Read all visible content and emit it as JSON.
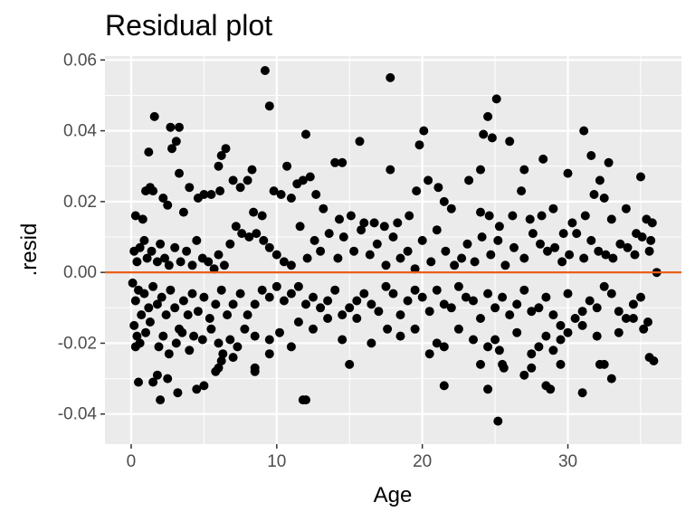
{
  "chart_data": {
    "type": "scatter",
    "title": "Residual plot",
    "xlabel": "Age",
    "ylabel": ".resid",
    "xlim": [
      -1.8,
      37.8
    ],
    "ylim": [
      -0.0485,
      0.0611
    ],
    "x_ticks": [
      0,
      10,
      20,
      30
    ],
    "x_tick_labels": [
      "0",
      "10",
      "20",
      "30"
    ],
    "y_ticks": [
      -0.04,
      -0.02,
      0.0,
      0.02,
      0.04,
      0.06
    ],
    "y_tick_labels": [
      "-0.04",
      "-0.02",
      "0.00",
      "0.02",
      "0.04",
      "0.06"
    ],
    "grid": true,
    "reference_line": {
      "y": 0,
      "color": "#e8601c"
    },
    "colors": {
      "panel": "#ebebeb",
      "grid": "#ffffff",
      "points": "#000000",
      "ref_line": "#e8601c"
    },
    "points": [
      [
        9.2,
        0.057
      ],
      [
        17.8,
        0.055
      ],
      [
        25.1,
        0.049
      ],
      [
        9.5,
        0.047
      ],
      [
        2.7,
        0.041
      ],
      [
        1.6,
        0.044
      ],
      [
        3.3,
        0.041
      ],
      [
        20.1,
        0.04
      ],
      [
        31.1,
        0.04
      ],
      [
        24.5,
        0.044
      ],
      [
        24.2,
        0.039
      ],
      [
        24.8,
        0.038
      ],
      [
        12.0,
        0.039
      ],
      [
        19.8,
        0.036
      ],
      [
        15.7,
        0.037
      ],
      [
        26.0,
        0.037
      ],
      [
        3.1,
        0.037
      ],
      [
        2.8,
        0.035
      ],
      [
        6.5,
        0.035
      ],
      [
        1.2,
        0.034
      ],
      [
        31.6,
        0.033
      ],
      [
        6.2,
        0.033
      ],
      [
        32.8,
        0.031
      ],
      [
        14.0,
        0.031
      ],
      [
        14.5,
        0.031
      ],
      [
        28.3,
        0.032
      ],
      [
        17.8,
        0.029
      ],
      [
        24.0,
        0.029
      ],
      [
        27.0,
        0.029
      ],
      [
        30.0,
        0.028
      ],
      [
        32.2,
        0.026
      ],
      [
        35.0,
        0.027
      ],
      [
        6.0,
        0.03
      ],
      [
        8.3,
        0.029
      ],
      [
        10.7,
        0.03
      ],
      [
        11.8,
        0.026
      ],
      [
        12.3,
        0.027
      ],
      [
        3.3,
        0.028
      ],
      [
        0.3,
        0.016
      ],
      [
        0.8,
        0.015
      ],
      [
        1.0,
        0.023
      ],
      [
        1.3,
        0.024
      ],
      [
        1.5,
        0.023
      ],
      [
        2.2,
        0.021
      ],
      [
        2.5,
        0.019
      ],
      [
        3.6,
        0.017
      ],
      [
        4.0,
        0.024
      ],
      [
        4.6,
        0.021
      ],
      [
        5.0,
        0.022
      ],
      [
        5.5,
        0.022
      ],
      [
        6.1,
        0.023
      ],
      [
        7.0,
        0.026
      ],
      [
        7.5,
        0.024
      ],
      [
        8.0,
        0.026
      ],
      [
        8.4,
        0.017
      ],
      [
        9.0,
        0.016
      ],
      [
        9.8,
        0.023
      ],
      [
        10.3,
        0.022
      ],
      [
        11.0,
        0.021
      ],
      [
        11.4,
        0.025
      ],
      [
        12.7,
        0.022
      ],
      [
        13.2,
        0.018
      ],
      [
        14.3,
        0.015
      ],
      [
        15.1,
        0.016
      ],
      [
        16.0,
        0.014
      ],
      [
        16.7,
        0.014
      ],
      [
        17.4,
        0.013
      ],
      [
        18.3,
        0.014
      ],
      [
        19.1,
        0.016
      ],
      [
        19.6,
        0.023
      ],
      [
        20.4,
        0.026
      ],
      [
        21.1,
        0.024
      ],
      [
        21.5,
        0.02
      ],
      [
        22.0,
        0.018
      ],
      [
        23.2,
        0.026
      ],
      [
        24.0,
        0.017
      ],
      [
        24.6,
        0.016
      ],
      [
        25.3,
        0.013
      ],
      [
        26.2,
        0.016
      ],
      [
        26.8,
        0.023
      ],
      [
        27.4,
        0.015
      ],
      [
        28.2,
        0.016
      ],
      [
        29.0,
        0.018
      ],
      [
        29.7,
        0.011
      ],
      [
        30.3,
        0.014
      ],
      [
        31.2,
        0.016
      ],
      [
        31.8,
        0.022
      ],
      [
        32.5,
        0.021
      ],
      [
        33.0,
        0.015
      ],
      [
        34.0,
        0.018
      ],
      [
        34.7,
        0.011
      ],
      [
        35.4,
        0.015
      ],
      [
        35.8,
        0.014
      ],
      [
        35.7,
        0.009
      ],
      [
        0.2,
        0.006
      ],
      [
        0.4,
        0.003
      ],
      [
        0.6,
        0.007
      ],
      [
        0.9,
        0.009
      ],
      [
        1.1,
        0.004
      ],
      [
        1.4,
        0.006
      ],
      [
        1.8,
        0.003
      ],
      [
        2.0,
        0.008
      ],
      [
        2.3,
        0.004
      ],
      [
        2.6,
        0.002
      ],
      [
        3.0,
        0.007
      ],
      [
        3.4,
        0.003
      ],
      [
        3.8,
        0.006
      ],
      [
        4.2,
        0.002
      ],
      [
        4.5,
        0.009
      ],
      [
        4.9,
        0.004
      ],
      [
        5.3,
        0.003
      ],
      [
        5.7,
        0.001
      ],
      [
        6.0,
        0.005
      ],
      [
        6.4,
        0.002
      ],
      [
        6.8,
        0.008
      ],
      [
        7.2,
        0.013
      ],
      [
        7.6,
        0.011
      ],
      [
        8.1,
        0.01
      ],
      [
        8.6,
        0.011
      ],
      [
        9.1,
        0.009
      ],
      [
        9.5,
        0.007
      ],
      [
        10.0,
        0.005
      ],
      [
        10.5,
        0.003
      ],
      [
        11.0,
        0.002
      ],
      [
        11.6,
        0.013
      ],
      [
        12.1,
        0.004
      ],
      [
        12.6,
        0.009
      ],
      [
        13.0,
        0.006
      ],
      [
        13.6,
        0.011
      ],
      [
        14.2,
        0.004
      ],
      [
        14.6,
        0.01
      ],
      [
        15.3,
        0.006
      ],
      [
        15.8,
        0.012
      ],
      [
        16.4,
        0.005
      ],
      [
        16.9,
        0.008
      ],
      [
        17.5,
        0.002
      ],
      [
        18.0,
        0.01
      ],
      [
        18.5,
        0.004
      ],
      [
        19.0,
        0.006
      ],
      [
        19.5,
        0.001
      ],
      [
        20.0,
        0.009
      ],
      [
        20.6,
        0.003
      ],
      [
        21.0,
        0.012
      ],
      [
        21.6,
        0.006
      ],
      [
        22.2,
        0.002
      ],
      [
        22.7,
        0.004
      ],
      [
        23.1,
        0.008
      ],
      [
        23.6,
        0.003
      ],
      [
        24.1,
        0.01
      ],
      [
        24.7,
        0.005
      ],
      [
        25.2,
        0.009
      ],
      [
        25.7,
        0.002
      ],
      [
        26.3,
        0.007
      ],
      [
        27.0,
        0.004
      ],
      [
        27.6,
        0.011
      ],
      [
        28.1,
        0.008
      ],
      [
        28.6,
        0.006
      ],
      [
        29.1,
        0.007
      ],
      [
        29.6,
        0.003
      ],
      [
        30.1,
        0.005
      ],
      [
        30.6,
        0.011
      ],
      [
        31.1,
        0.004
      ],
      [
        31.6,
        0.009
      ],
      [
        32.1,
        0.006
      ],
      [
        32.6,
        0.005
      ],
      [
        33.1,
        0.004
      ],
      [
        33.6,
        0.008
      ],
      [
        34.1,
        0.007
      ],
      [
        34.6,
        0.005
      ],
      [
        35.1,
        0.01
      ],
      [
        35.6,
        0.006
      ],
      [
        36.1,
        0.0
      ],
      [
        0.1,
        -0.003
      ],
      [
        0.3,
        -0.008
      ],
      [
        0.5,
        -0.005
      ],
      [
        0.7,
        -0.012
      ],
      [
        0.9,
        -0.006
      ],
      [
        1.2,
        -0.01
      ],
      [
        1.5,
        -0.004
      ],
      [
        1.8,
        -0.009
      ],
      [
        2.1,
        -0.007
      ],
      [
        2.4,
        -0.012
      ],
      [
        2.7,
        -0.005
      ],
      [
        3.0,
        -0.01
      ],
      [
        3.3,
        -0.016
      ],
      [
        3.6,
        -0.008
      ],
      [
        3.9,
        -0.012
      ],
      [
        4.2,
        -0.006
      ],
      [
        4.6,
        -0.011
      ],
      [
        5.0,
        -0.007
      ],
      [
        5.4,
        -0.013
      ],
      [
        5.8,
        -0.009
      ],
      [
        6.2,
        -0.005
      ],
      [
        6.6,
        -0.012
      ],
      [
        7.0,
        -0.009
      ],
      [
        7.5,
        -0.006
      ],
      [
        8.0,
        -0.012
      ],
      [
        8.5,
        -0.009
      ],
      [
        9.0,
        -0.005
      ],
      [
        9.5,
        -0.007
      ],
      [
        10.0,
        -0.004
      ],
      [
        10.5,
        -0.008
      ],
      [
        11.0,
        -0.006
      ],
      [
        11.5,
        -0.004
      ],
      [
        12.0,
        -0.009
      ],
      [
        12.5,
        -0.007
      ],
      [
        13.0,
        -0.01
      ],
      [
        13.5,
        -0.008
      ],
      [
        14.0,
        -0.005
      ],
      [
        14.5,
        -0.012
      ],
      [
        15.0,
        -0.01
      ],
      [
        15.5,
        -0.008
      ],
      [
        16.0,
        -0.006
      ],
      [
        16.5,
        -0.009
      ],
      [
        17.0,
        -0.011
      ],
      [
        17.5,
        -0.004
      ],
      [
        18.0,
        -0.006
      ],
      [
        18.5,
        -0.012
      ],
      [
        19.0,
        -0.008
      ],
      [
        19.5,
        -0.005
      ],
      [
        20.0,
        -0.007
      ],
      [
        20.5,
        -0.011
      ],
      [
        21.0,
        -0.005
      ],
      [
        21.5,
        -0.009
      ],
      [
        22.0,
        -0.01
      ],
      [
        22.5,
        -0.004
      ],
      [
        23.0,
        -0.007
      ],
      [
        23.5,
        -0.008
      ],
      [
        24.0,
        -0.013
      ],
      [
        24.5,
        -0.006
      ],
      [
        25.0,
        -0.01
      ],
      [
        25.5,
        -0.007
      ],
      [
        26.0,
        -0.012
      ],
      [
        26.5,
        -0.009
      ],
      [
        27.0,
        -0.005
      ],
      [
        27.5,
        -0.011
      ],
      [
        28.0,
        -0.01
      ],
      [
        28.5,
        -0.007
      ],
      [
        29.0,
        -0.012
      ],
      [
        29.5,
        -0.015
      ],
      [
        30.0,
        -0.006
      ],
      [
        30.5,
        -0.013
      ],
      [
        31.0,
        -0.011
      ],
      [
        31.5,
        -0.008
      ],
      [
        32.0,
        -0.01
      ],
      [
        32.5,
        -0.004
      ],
      [
        33.0,
        -0.006
      ],
      [
        33.5,
        -0.011
      ],
      [
        34.0,
        -0.013
      ],
      [
        34.5,
        -0.009
      ],
      [
        35.0,
        -0.007
      ],
      [
        35.5,
        -0.014
      ],
      [
        0.2,
        -0.015
      ],
      [
        0.4,
        -0.018
      ],
      [
        0.3,
        -0.021
      ],
      [
        0.6,
        -0.02
      ],
      [
        1.0,
        -0.017
      ],
      [
        1.3,
        -0.014
      ],
      [
        1.9,
        -0.021
      ],
      [
        2.2,
        -0.018
      ],
      [
        2.6,
        -0.023
      ],
      [
        3.1,
        -0.02
      ],
      [
        3.5,
        -0.017
      ],
      [
        4.0,
        -0.022
      ],
      [
        4.3,
        -0.018
      ],
      [
        4.9,
        -0.019
      ],
      [
        5.5,
        -0.016
      ],
      [
        6.0,
        -0.02
      ],
      [
        6.3,
        -0.023
      ],
      [
        6.8,
        -0.019
      ],
      [
        7.3,
        -0.021
      ],
      [
        7.8,
        -0.016
      ],
      [
        8.5,
        -0.018
      ],
      [
        9.5,
        -0.019
      ],
      [
        10.2,
        -0.017
      ],
      [
        11.0,
        -0.021
      ],
      [
        11.5,
        -0.014
      ],
      [
        12.5,
        -0.016
      ],
      [
        13.5,
        -0.013
      ],
      [
        14.5,
        -0.019
      ],
      [
        15.5,
        -0.013
      ],
      [
        16.5,
        -0.02
      ],
      [
        17.6,
        -0.016
      ],
      [
        18.5,
        -0.018
      ],
      [
        19.5,
        -0.016
      ],
      [
        20.5,
        -0.023
      ],
      [
        21.0,
        -0.02
      ],
      [
        21.5,
        -0.021
      ],
      [
        22.5,
        -0.016
      ],
      [
        23.5,
        -0.019
      ],
      [
        24.0,
        -0.026
      ],
      [
        24.5,
        -0.021
      ],
      [
        25.0,
        -0.019
      ],
      [
        25.3,
        -0.022
      ],
      [
        25.6,
        -0.027
      ],
      [
        26.5,
        -0.017
      ],
      [
        27.0,
        -0.029
      ],
      [
        27.5,
        -0.023
      ],
      [
        28.0,
        -0.021
      ],
      [
        28.5,
        -0.018
      ],
      [
        29.0,
        -0.022
      ],
      [
        29.5,
        -0.019
      ],
      [
        30.0,
        -0.017
      ],
      [
        31.0,
        -0.015
      ],
      [
        32.0,
        -0.018
      ],
      [
        32.5,
        -0.026
      ],
      [
        33.5,
        -0.017
      ],
      [
        34.5,
        -0.013
      ],
      [
        35.2,
        -0.016
      ],
      [
        35.6,
        -0.024
      ],
      [
        35.9,
        -0.025
      ],
      [
        0.5,
        -0.031
      ],
      [
        1.5,
        -0.031
      ],
      [
        1.8,
        -0.029
      ],
      [
        2.0,
        -0.036
      ],
      [
        2.5,
        -0.03
      ],
      [
        3.2,
        -0.034
      ],
      [
        4.5,
        -0.033
      ],
      [
        5.0,
        -0.032
      ],
      [
        5.8,
        -0.028
      ],
      [
        6.0,
        -0.027
      ],
      [
        6.2,
        -0.025
      ],
      [
        7.0,
        -0.024
      ],
      [
        8.5,
        -0.028
      ],
      [
        8.5,
        -0.027
      ],
      [
        9.5,
        -0.023
      ],
      [
        11.8,
        -0.036
      ],
      [
        12.0,
        -0.036
      ],
      [
        15.0,
        -0.026
      ],
      [
        21.5,
        -0.032
      ],
      [
        24.5,
        -0.033
      ],
      [
        25.2,
        -0.042
      ],
      [
        25.5,
        -0.026
      ],
      [
        27.5,
        -0.027
      ],
      [
        28.5,
        -0.032
      ],
      [
        28.8,
        -0.033
      ],
      [
        29.5,
        -0.026
      ],
      [
        31.0,
        -0.034
      ],
      [
        32.2,
        -0.026
      ],
      [
        33.0,
        -0.03
      ]
    ]
  }
}
